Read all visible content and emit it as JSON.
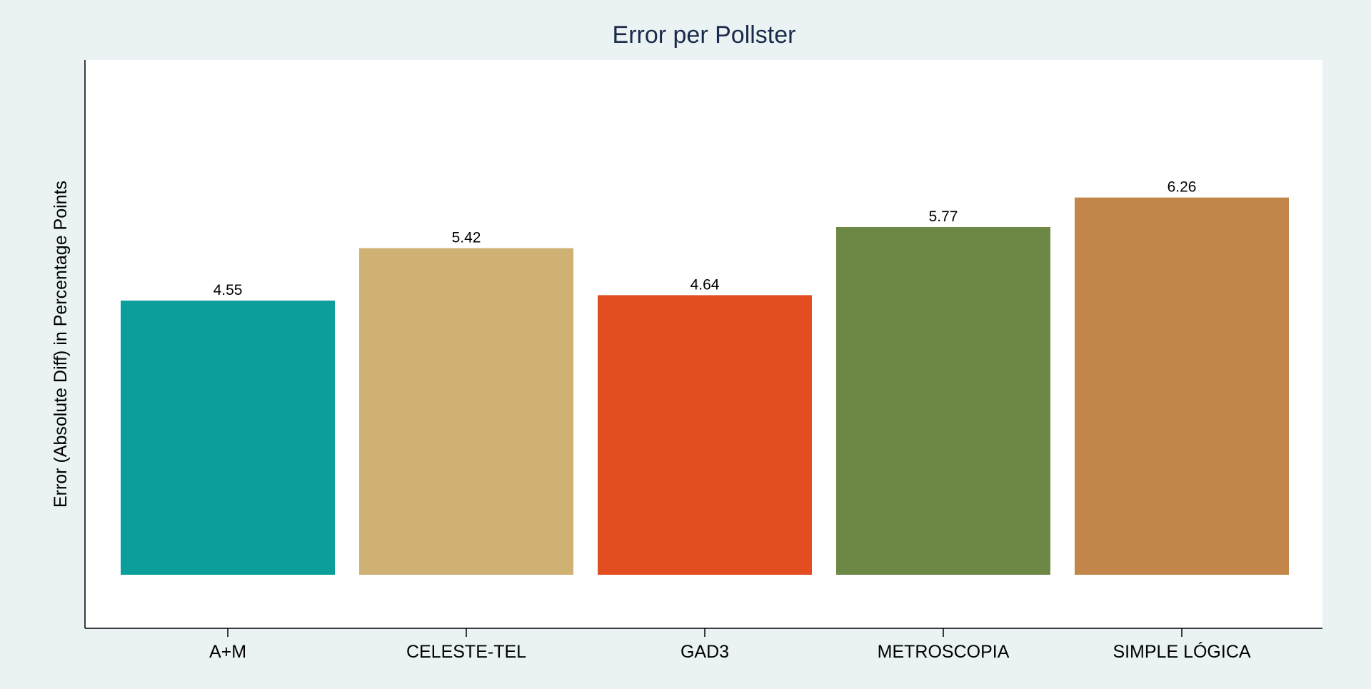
{
  "chart_data": {
    "type": "bar",
    "title": "Error per Pollster",
    "xlabel": "",
    "ylabel": "Error (Absolute Diff) in Percentage Points",
    "categories": [
      "A+M",
      "CELESTE-TEL",
      "GAD3",
      "METROSCOPIA",
      "SIMPLE LÓGICA"
    ],
    "values": [
      4.55,
      5.42,
      4.64,
      5.77,
      6.26
    ],
    "value_labels": [
      "4.55",
      "5.42",
      "4.64",
      "5.77",
      "6.26"
    ],
    "colors": [
      "#0b9e9b",
      "#cfb174",
      "#e34e21",
      "#6d8744",
      "#c2864a"
    ],
    "ylim": [
      0,
      7.0
    ],
    "grid": false,
    "legend": "none",
    "background": "#eaf2f3",
    "plot_background": "#ffffff"
  }
}
